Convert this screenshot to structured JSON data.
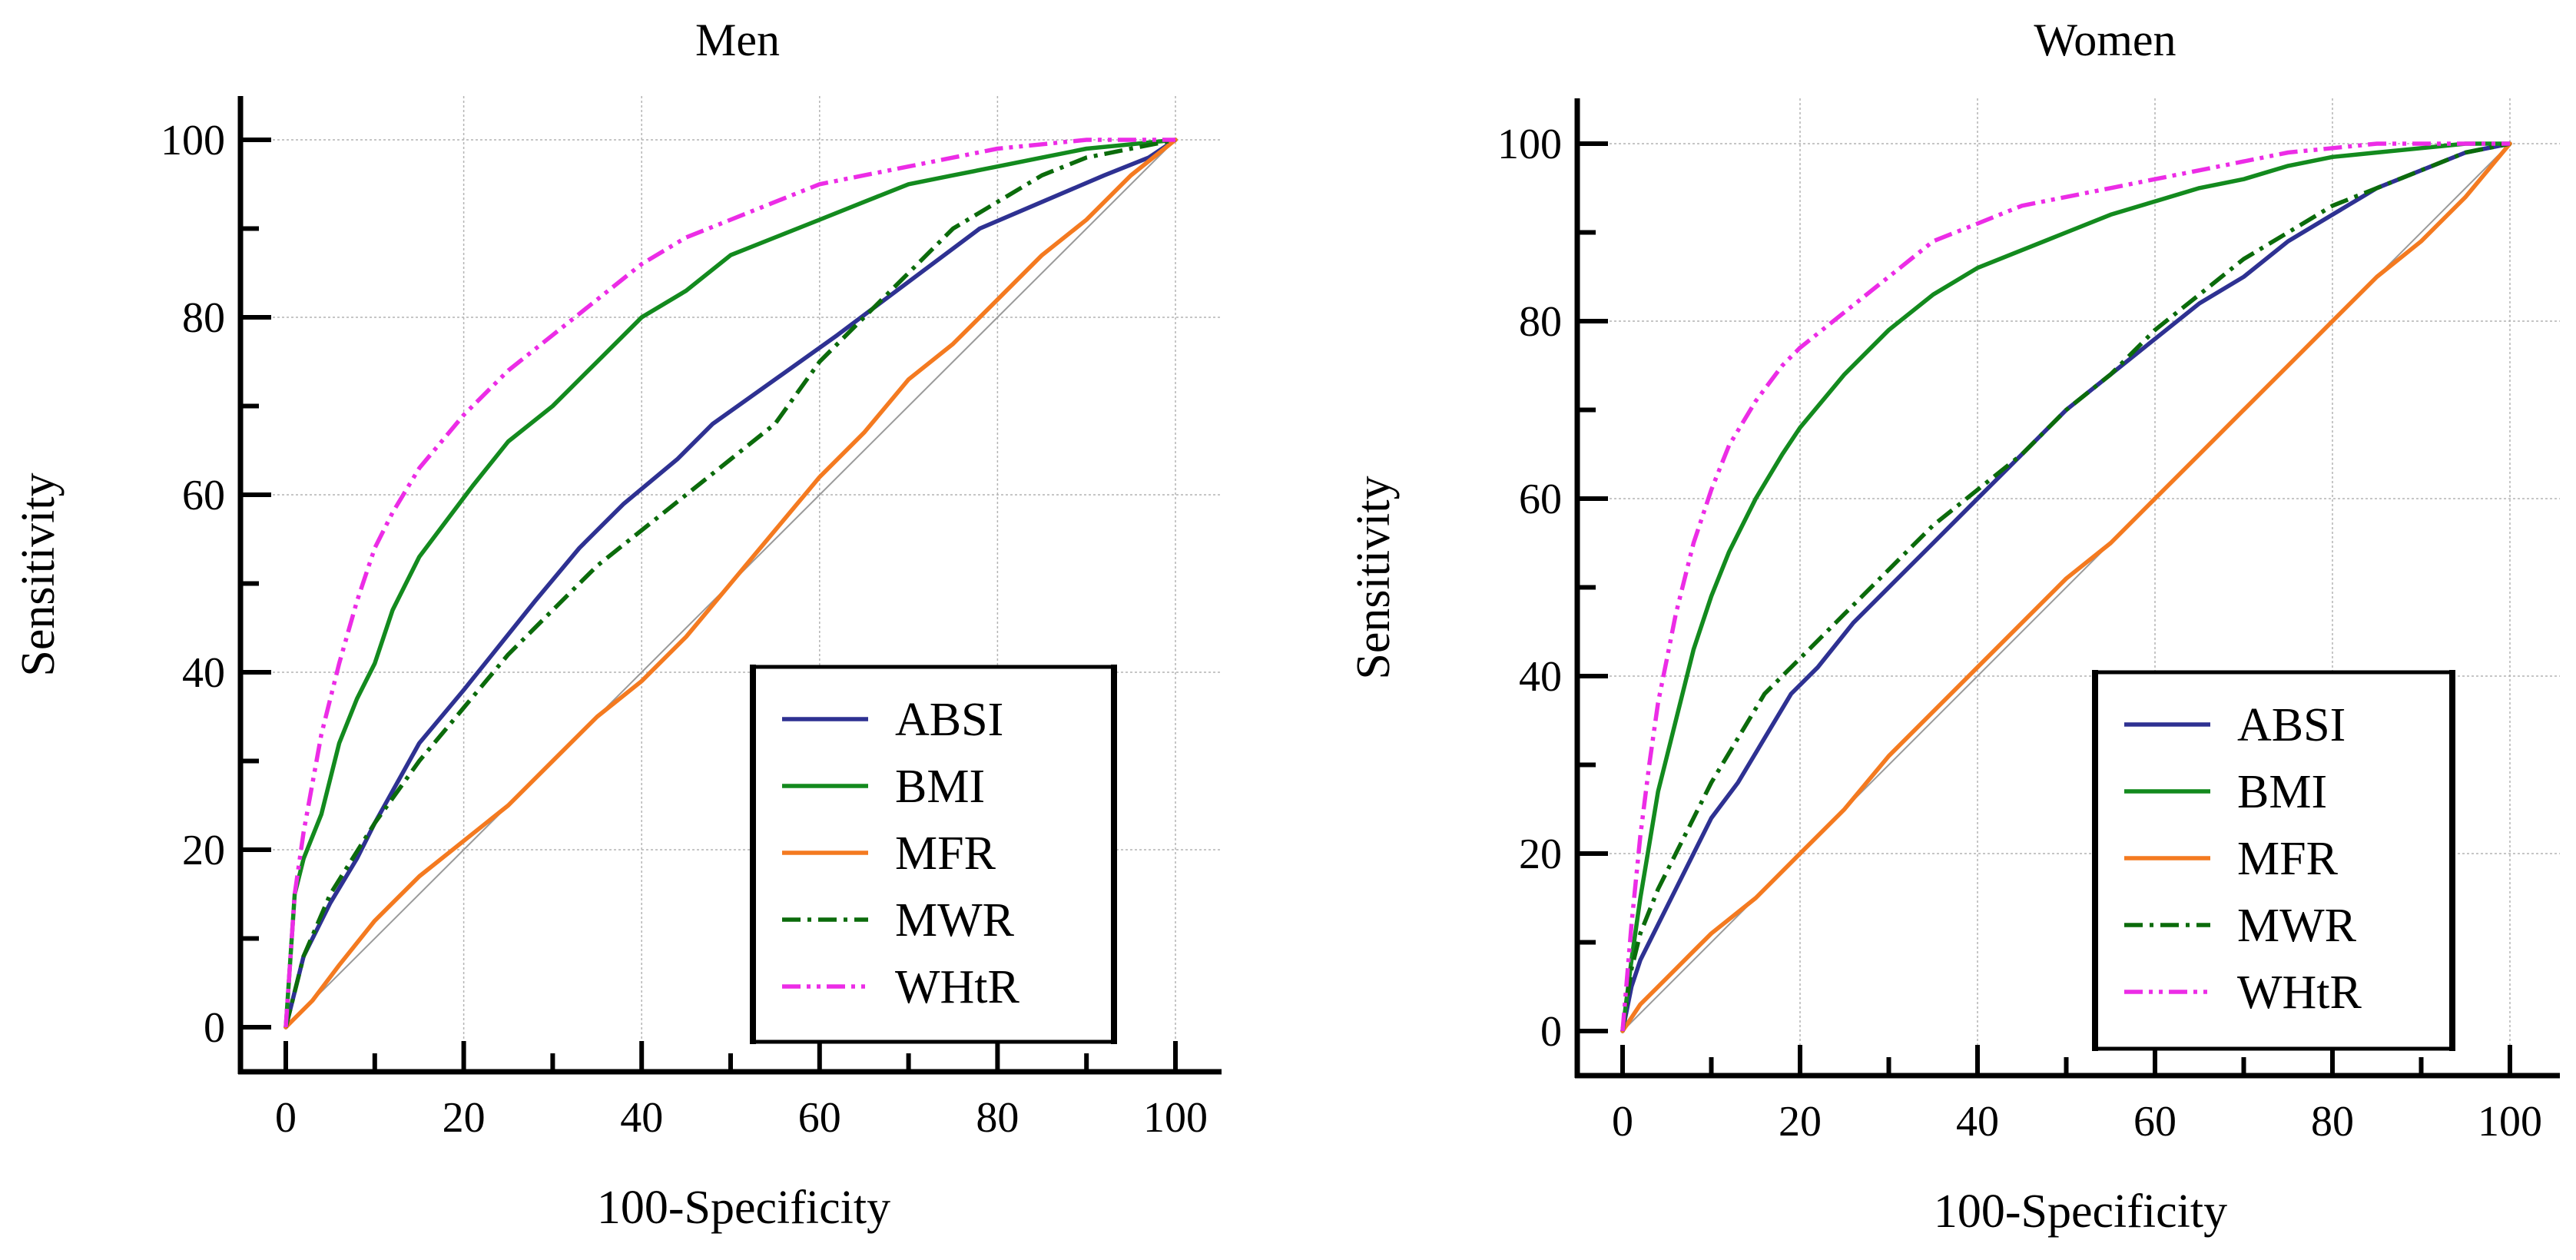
{
  "figure": {
    "colors": {
      "ABSI": "#2e3192",
      "BMI": "#138a1e",
      "MFR": "#f47a20",
      "MWR": "#0b6b0b",
      "WHtR": "#ec2ce6",
      "reference": "#9a9a9a",
      "grid": "#b4b4b4"
    }
  },
  "chart_data": [
    {
      "type": "line",
      "title": "Men",
      "xlabel": "100-Specificity",
      "ylabel": "Sensitivity",
      "xlim": [
        0,
        100
      ],
      "ylim": [
        0,
        100
      ],
      "xticks": [
        "0",
        "20",
        "40",
        "60",
        "80",
        "100"
      ],
      "yticks": [
        "0",
        "20",
        "40",
        "60",
        "80",
        "100"
      ],
      "grid": true,
      "legend_position": "bottom-right",
      "reference_line": [
        [
          0,
          0
        ],
        [
          100,
          100
        ]
      ],
      "series": [
        {
          "name": "ABSI",
          "style": "solid",
          "x": [
            0,
            2,
            5,
            8,
            10,
            15,
            20,
            24,
            28,
            33,
            38,
            44,
            48,
            55,
            62,
            70,
            78,
            85,
            92,
            97,
            100
          ],
          "y": [
            0,
            8,
            14,
            19,
            23,
            32,
            38,
            43,
            48,
            54,
            59,
            64,
            68,
            73,
            78,
            84,
            90,
            93,
            96,
            98,
            100
          ]
        },
        {
          "name": "BMI",
          "style": "solid",
          "x": [
            0,
            1,
            2,
            4,
            6,
            8,
            10,
            12,
            15,
            18,
            21,
            25,
            30,
            35,
            40,
            45,
            50,
            55,
            60,
            65,
            70,
            75,
            80,
            85,
            90,
            95,
            100
          ],
          "y": [
            0,
            15,
            19,
            24,
            32,
            37,
            41,
            47,
            53,
            57,
            61,
            66,
            70,
            75,
            80,
            83,
            87,
            89,
            91,
            93,
            95,
            96,
            97,
            98,
            99,
            99.5,
            100
          ]
        },
        {
          "name": "MFR",
          "style": "solid",
          "x": [
            0,
            3,
            6,
            10,
            15,
            20,
            25,
            30,
            35,
            40,
            45,
            50,
            55,
            60,
            65,
            70,
            75,
            80,
            85,
            90,
            95,
            100
          ],
          "y": [
            0,
            3,
            7,
            12,
            17,
            21,
            25,
            30,
            35,
            39,
            44,
            50,
            56,
            62,
            67,
            73,
            77,
            82,
            87,
            91,
            96,
            100
          ]
        },
        {
          "name": "MWR",
          "style": "dashdot",
          "x": [
            0,
            2,
            5,
            10,
            15,
            20,
            25,
            30,
            35,
            40,
            45,
            50,
            55,
            60,
            65,
            70,
            75,
            80,
            85,
            90,
            95,
            100
          ],
          "y": [
            0,
            8,
            15,
            23,
            30,
            36,
            42,
            47,
            52,
            56,
            60,
            64,
            68,
            75,
            80,
            85,
            90,
            93,
            96,
            98,
            99,
            100
          ]
        },
        {
          "name": "WHtR",
          "style": "dashdotdot",
          "x": [
            0,
            1,
            2,
            4,
            6,
            8,
            10,
            12,
            15,
            20,
            25,
            30,
            35,
            40,
            45,
            50,
            55,
            60,
            65,
            70,
            75,
            80,
            85,
            90,
            95,
            100
          ],
          "y": [
            0,
            15,
            22,
            33,
            41,
            48,
            54,
            58,
            63,
            69,
            74,
            78,
            82,
            86,
            89,
            91,
            93,
            95,
            96,
            97,
            98,
            99,
            99.5,
            100,
            100,
            100
          ]
        }
      ]
    },
    {
      "type": "line",
      "title": "Women",
      "xlabel": "100-Specificity",
      "ylabel": "Sensitivity",
      "xlim": [
        0,
        100
      ],
      "ylim": [
        0,
        100
      ],
      "xticks": [
        "0",
        "20",
        "40",
        "60",
        "80",
        "100"
      ],
      "yticks": [
        "0",
        "20",
        "40",
        "60",
        "80",
        "100"
      ],
      "grid": true,
      "legend_position": "bottom-right",
      "reference_line": [
        [
          0,
          0
        ],
        [
          100,
          100
        ]
      ],
      "series": [
        {
          "name": "ABSI",
          "style": "solid",
          "x": [
            0,
            1,
            2,
            4,
            6,
            8,
            10,
            13,
            16,
            19,
            22,
            26,
            30,
            35,
            40,
            45,
            50,
            55,
            60,
            65,
            70,
            75,
            80,
            85,
            90,
            95,
            100
          ],
          "y": [
            0,
            5,
            8,
            12,
            16,
            20,
            24,
            28,
            33,
            38,
            41,
            46,
            50,
            55,
            60,
            65,
            70,
            74,
            78,
            82,
            85,
            89,
            92,
            95,
            97,
            99,
            100
          ]
        },
        {
          "name": "BMI",
          "style": "solid",
          "x": [
            0,
            1,
            2,
            3,
            4,
            5,
            6,
            8,
            10,
            12,
            15,
            18,
            20,
            25,
            30,
            35,
            40,
            45,
            50,
            55,
            60,
            65,
            70,
            75,
            80,
            85,
            90,
            95,
            100
          ],
          "y": [
            0,
            8,
            15,
            21,
            27,
            31,
            35,
            43,
            49,
            54,
            60,
            65,
            68,
            74,
            79,
            83,
            86,
            88,
            90,
            92,
            93.5,
            95,
            96,
            97.5,
            98.5,
            99,
            99.5,
            100,
            100
          ]
        },
        {
          "name": "MFR",
          "style": "solid",
          "x": [
            0,
            2,
            4,
            6,
            8,
            10,
            15,
            20,
            25,
            30,
            35,
            40,
            45,
            50,
            55,
            60,
            65,
            70,
            75,
            80,
            85,
            90,
            95,
            100
          ],
          "y": [
            0,
            3,
            5,
            7,
            9,
            11,
            15,
            20,
            25,
            31,
            36,
            41,
            46,
            51,
            55,
            60,
            65,
            70,
            75,
            80,
            85,
            89,
            94,
            100
          ]
        },
        {
          "name": "MWR",
          "style": "dashdot",
          "x": [
            0,
            1,
            2,
            4,
            6,
            8,
            10,
            13,
            16,
            20,
            25,
            30,
            35,
            40,
            45,
            50,
            55,
            60,
            65,
            70,
            75,
            80,
            85,
            90,
            95,
            100
          ],
          "y": [
            0,
            7,
            11,
            16,
            20,
            24,
            28,
            33,
            38,
            42,
            47,
            52,
            57,
            61,
            65,
            70,
            74,
            79,
            83,
            87,
            90,
            93,
            95,
            97,
            99,
            100
          ]
        },
        {
          "name": "WHtR",
          "style": "dashdotdot",
          "x": [
            0,
            1,
            2,
            3,
            4,
            5,
            6,
            8,
            10,
            12,
            15,
            18,
            20,
            25,
            30,
            35,
            40,
            45,
            50,
            55,
            60,
            65,
            70,
            75,
            80,
            85,
            90,
            95,
            100
          ],
          "y": [
            0,
            12,
            22,
            30,
            37,
            42,
            47,
            55,
            61,
            66,
            71,
            75,
            77,
            81,
            85,
            89,
            91,
            93,
            94,
            95,
            96,
            97,
            98,
            99,
            99.5,
            100,
            100,
            100,
            100
          ]
        }
      ]
    }
  ]
}
